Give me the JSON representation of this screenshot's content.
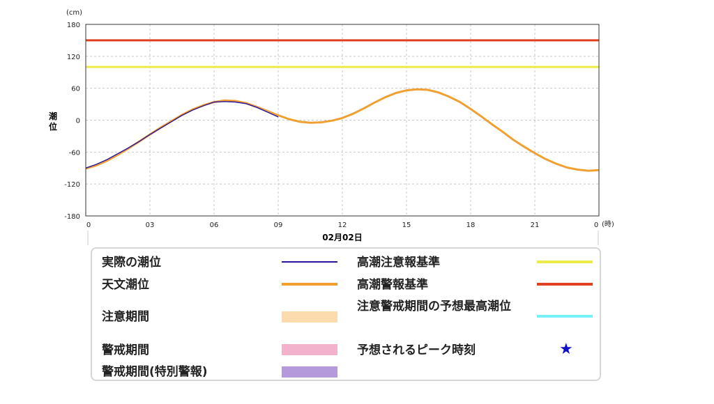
{
  "chart_data": {
    "type": "line",
    "ylabel": "潮位",
    "yunit": "(cm)",
    "xunit": "(時)",
    "date_label": "02月02日",
    "ylim": [
      -180,
      180
    ],
    "yticks": [
      "180",
      "120",
      "60",
      "0",
      "-60",
      "-120",
      "-180"
    ],
    "xlim": [
      0,
      24
    ],
    "xticks": [
      "0",
      "03",
      "06",
      "09",
      "12",
      "15",
      "18",
      "21",
      "0"
    ],
    "grid": true,
    "series": [
      {
        "name": "実際の潮位",
        "color": "#2a14a0",
        "x": [
          0,
          0.5,
          1,
          1.5,
          2,
          2.5,
          3,
          3.5,
          4,
          4.5,
          5,
          5.5,
          6,
          6.5,
          7,
          7.5,
          8,
          8.5,
          9
        ],
        "y": [
          -90,
          -83,
          -74,
          -63,
          -52,
          -40,
          -27,
          -15,
          -3,
          9,
          19,
          27,
          34,
          35,
          34,
          31,
          24,
          15,
          6
        ]
      },
      {
        "name": "天文潮位",
        "color": "#f0a030",
        "x": [
          0,
          0.5,
          1,
          1.5,
          2,
          2.5,
          3,
          3.5,
          4,
          4.5,
          5,
          5.5,
          6,
          6.5,
          7,
          7.5,
          8,
          8.5,
          9,
          9.5,
          10,
          10.5,
          11,
          11.5,
          12,
          12.5,
          13,
          13.5,
          14,
          14.5,
          15,
          15.5,
          16,
          16.5,
          17,
          17.5,
          18,
          18.5,
          19,
          19.5,
          20,
          20.5,
          21,
          21.5,
          22,
          22.5,
          23,
          23.5,
          24
        ],
        "y": [
          -91,
          -85,
          -76,
          -65,
          -53,
          -40,
          -27,
          -14,
          -2,
          10,
          20,
          28,
          34,
          37,
          36,
          32,
          25,
          17,
          9,
          2,
          -3,
          -5,
          -4,
          -1,
          4,
          12,
          22,
          33,
          43,
          51,
          56,
          58,
          57,
          52,
          44,
          34,
          21,
          7,
          -8,
          -22,
          -37,
          -50,
          -62,
          -73,
          -82,
          -89,
          -93,
          -95,
          -94
        ]
      }
    ],
    "hlines": [
      {
        "name": "高潮注意報基準",
        "value": 100,
        "color": "#ecec48"
      },
      {
        "name": "高潮警報基準",
        "value": 150,
        "color": "#e04020"
      }
    ]
  },
  "legend": {
    "items": [
      {
        "label": "実際の潮位",
        "kind": "line",
        "color": "#2a14a0"
      },
      {
        "label": "天文潮位",
        "kind": "line",
        "color": "#f0a030"
      },
      {
        "label": "注意期間",
        "kind": "swatch",
        "color": "#fcdcae"
      },
      {
        "label": "警戒期間",
        "kind": "swatch",
        "color": "#f2b2cc"
      },
      {
        "label": "警戒期間(特別警報)",
        "kind": "swatch",
        "color": "#b49ada"
      },
      {
        "label": "高潮注意報基準",
        "kind": "line",
        "color": "#ecec48"
      },
      {
        "label": "高潮警報基準",
        "kind": "line",
        "color": "#e04020"
      },
      {
        "label": "注意警戒期間の予想最高潮位",
        "kind": "line",
        "color": "#78f0f8"
      },
      {
        "label": "予想されるピーク時刻",
        "kind": "star",
        "color": "#1010c8",
        "symbol": "★"
      }
    ]
  }
}
